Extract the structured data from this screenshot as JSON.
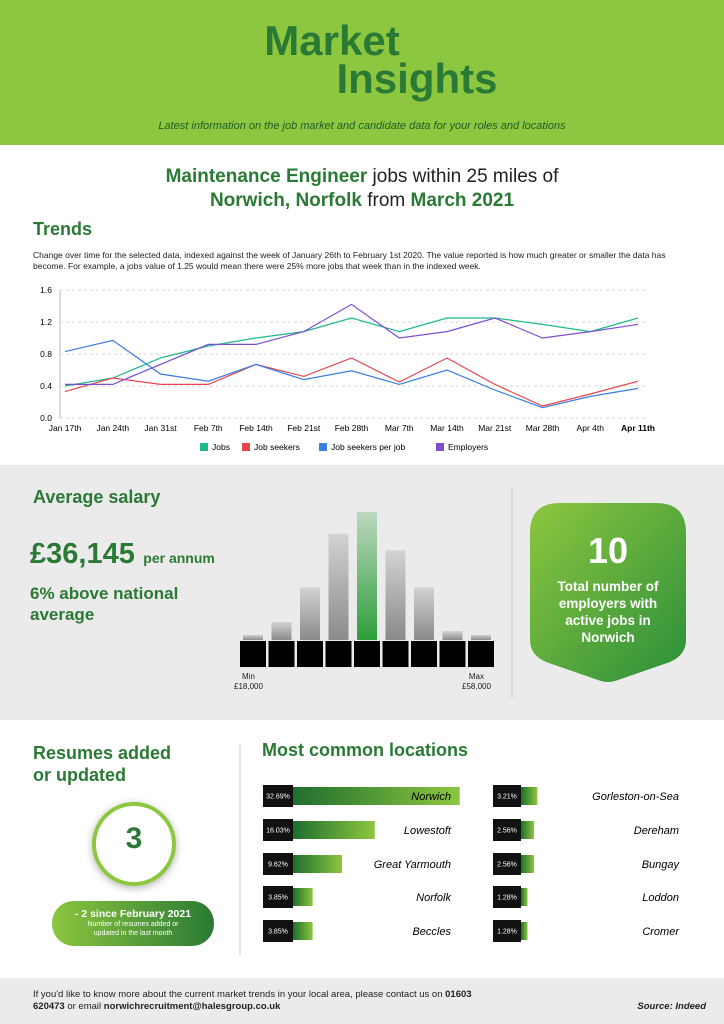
{
  "header": {
    "logo_line1": "Market",
    "logo_line2": "Insights",
    "tagline": "Latest information on the job market and candidate data for your roles and locations"
  },
  "heading": {
    "role": "Maintenance Engineer",
    "middle": "jobs within 25 miles of",
    "location": "Norwich, Norfolk",
    "from": "from",
    "date": "March 2021"
  },
  "trends": {
    "title": "Trends",
    "description": "Change over time for the selected data, indexed against the week of January 26th to February 1st 2020. The value reported is how much greater or smaller the data has become. For example, a jobs value of 1.25 would mean there were 25% more jobs that week than in the indexed week."
  },
  "salary": {
    "title": "Average salary",
    "amount": "£36,145",
    "period": "per annum",
    "comparison": "6% above national average",
    "min_label": "Min",
    "min_value": "£18,000",
    "max_label": "Max",
    "max_value": "£58,000"
  },
  "employers": {
    "count": "10",
    "label": "Total number of employers with active jobs in Norwich"
  },
  "resumes": {
    "title": "Resumes added or updated",
    "count": "3",
    "change": "- 2 since February 2021",
    "change_note": "Number of resumes added or updated in the last month"
  },
  "locations": {
    "title": "Most common locations"
  },
  "footer": {
    "text": "If you'd like to know more about the current market trends in your local area, please contact us on",
    "phone": "01603 620473",
    "or_email": "or email",
    "email": "norwichrecruitment@halesgroup.co.uk",
    "source": "Source: Indeed"
  },
  "chart_data": [
    {
      "type": "line",
      "categories": [
        "Jan 17th",
        "Jan 24th",
        "Jan 31st",
        "Feb 7th",
        "Feb 14th",
        "Feb 21st",
        "Feb 28th",
        "Mar 7th",
        "Mar 14th",
        "Mar 21st",
        "Mar 28th",
        "Apr 4th",
        "Apr 11th"
      ],
      "series": [
        {
          "name": "Jobs",
          "color": "#1fb98c",
          "values": [
            0.4,
            0.5,
            0.75,
            0.9,
            1.0,
            1.08,
            1.25,
            1.08,
            1.25,
            1.25,
            1.17,
            1.08,
            1.25
          ]
        },
        {
          "name": "Job seekers",
          "color": "#e8454d",
          "values": [
            0.33,
            0.5,
            0.42,
            0.42,
            0.67,
            0.52,
            0.75,
            0.45,
            0.75,
            0.42,
            0.15,
            0.3,
            0.46
          ]
        },
        {
          "name": "Job seekers per job",
          "color": "#3b7de0",
          "values": [
            0.83,
            0.97,
            0.55,
            0.46,
            0.67,
            0.48,
            0.59,
            0.42,
            0.6,
            0.35,
            0.13,
            0.27,
            0.37
          ]
        },
        {
          "name": "Employers",
          "color": "#7a4fd6",
          "values": [
            0.42,
            0.42,
            0.67,
            0.92,
            0.92,
            1.08,
            1.42,
            1.0,
            1.08,
            1.25,
            1.0,
            1.08,
            1.17
          ]
        }
      ],
      "ylim": [
        0,
        1.6
      ],
      "yticks": [
        {
          "value": 0,
          "label": "0.0"
        },
        0.4,
        0.8,
        1.2,
        1.6
      ],
      "grid": true
    },
    {
      "type": "bar",
      "values": [
        4,
        14,
        41,
        83,
        100,
        70,
        41,
        7,
        4
      ],
      "colors": [
        "#8a8a8a",
        "#8a8a8a",
        "#8a8a8a",
        "#8a8a8a",
        "#2e9e3a",
        "#8a8a8a",
        "#8a8a8a",
        "#8a8a8a",
        "#8a8a8a"
      ]
    },
    {
      "type": "bar",
      "orientation": "horizontal",
      "categories": [
        "Norwich",
        "Lowestoft",
        "Great Yarmouth",
        "Norfolk",
        "Beccles",
        "Gorleston-on-Sea",
        "Dereham",
        "Bungay",
        "Loddon",
        "Cromer"
      ],
      "values": [
        32.69,
        16.03,
        9.62,
        3.85,
        3.85,
        3.21,
        2.56,
        2.56,
        1.28,
        1.28
      ],
      "value_labels": [
        "32.69%",
        "16.03%",
        "9.62%",
        "3.85%",
        "3.85%",
        "3.21%",
        "2.56%",
        "2.56%",
        "1.28%",
        "1.28%"
      ],
      "color": "#2e9e3a"
    }
  ]
}
